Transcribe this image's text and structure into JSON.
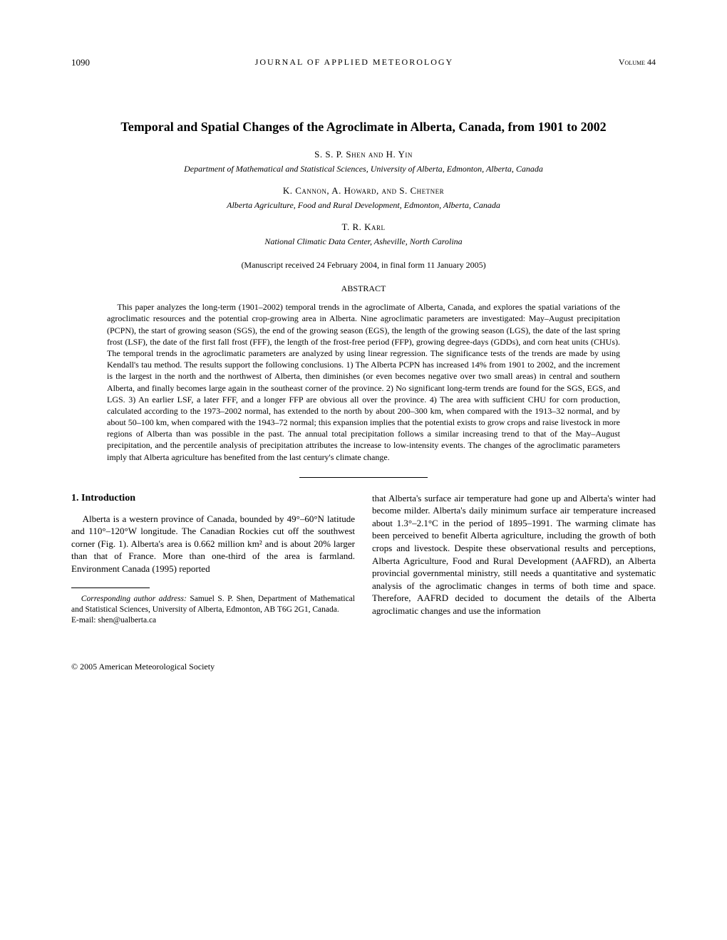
{
  "header": {
    "page_number": "1090",
    "journal": "JOURNAL OF APPLIED METEOROLOGY",
    "volume": "Volume 44"
  },
  "title": "Temporal and Spatial Changes of the Agroclimate in Alberta, Canada, from 1901 to 2002",
  "author_blocks": [
    {
      "authors": "S. S. P. Shen and H. Yin",
      "affiliation": "Department of Mathematical and Statistical Sciences, University of Alberta, Edmonton, Alberta, Canada"
    },
    {
      "authors": "K. Cannon, A. Howard, and S. Chetner",
      "affiliation": "Alberta Agriculture, Food and Rural Development, Edmonton, Alberta, Canada"
    },
    {
      "authors": "T. R. Karl",
      "affiliation": "National Climatic Data Center, Asheville, North Carolina"
    }
  ],
  "manuscript_info": "(Manuscript received 24 February 2004, in final form 11 January 2005)",
  "abstract_heading": "ABSTRACT",
  "abstract_text": "This paper analyzes the long-term (1901–2002) temporal trends in the agroclimate of Alberta, Canada, and explores the spatial variations of the agroclimatic resources and the potential crop-growing area in Alberta. Nine agroclimatic parameters are investigated: May–August precipitation (PCPN), the start of growing season (SGS), the end of the growing season (EGS), the length of the growing season (LGS), the date of the last spring frost (LSF), the date of the first fall frost (FFF), the length of the frost-free period (FFP), growing degree-days (GDDs), and corn heat units (CHUs). The temporal trends in the agroclimatic parameters are analyzed by using linear regression. The significance tests of the trends are made by using Kendall's tau method. The results support the following conclusions. 1) The Alberta PCPN has increased 14% from 1901 to 2002, and the increment is the largest in the north and the northwest of Alberta, then diminishes (or even becomes negative over two small areas) in central and southern Alberta, and finally becomes large again in the southeast corner of the province. 2) No significant long-term trends are found for the SGS, EGS, and LGS. 3) An earlier LSF, a later FFF, and a longer FFP are obvious all over the province. 4) The area with sufficient CHU for corn production, calculated according to the 1973–2002 normal, has extended to the north by about 200–300 km, when compared with the 1913–32 normal, and by about 50–100 km, when compared with the 1943–72 normal; this expansion implies that the potential exists to grow crops and raise livestock in more regions of Alberta than was possible in the past. The annual total precipitation follows a similar increasing trend to that of the May–August precipitation, and the percentile analysis of precipitation attributes the increase to low-intensity events. The changes of the agroclimatic parameters imply that Alberta agriculture has benefited from the last century's climate change.",
  "section_heading": "1. Introduction",
  "column_left_para": "Alberta is a western province of Canada, bounded by 49°–60°N latitude and 110°–120°W longitude. The Canadian Rockies cut off the southwest corner (Fig. 1). Alberta's area is 0.662 million km² and is about 20% larger than that of France. More than one-third of the area is farmland. Environment Canada (1995) reported",
  "column_right_para": "that Alberta's surface air temperature had gone up and Alberta's winter had become milder. Alberta's daily minimum surface air temperature increased about 1.3°–2.1°C in the period of 1895–1991. The warming climate has been perceived to benefit Alberta agriculture, including the growth of both crops and livestock. Despite these observational results and perceptions, Alberta Agriculture, Food and Rural Development (AAFRD), an Alberta provincial governmental ministry, still needs a quantitative and systematic analysis of the agroclimatic changes in terms of both time and space. Therefore, AAFRD decided to document the details of the Alberta agroclimatic changes and use the information",
  "footnote": {
    "address_label": "Corresponding author address:",
    "address_text": " Samuel S. P. Shen, Department of Mathematical and Statistical Sciences, University of Alberta, Edmonton, AB T6G 2G1, Canada.",
    "email": "E-mail: shen@ualberta.ca"
  },
  "copyright": "© 2005 American Meteorological Society"
}
